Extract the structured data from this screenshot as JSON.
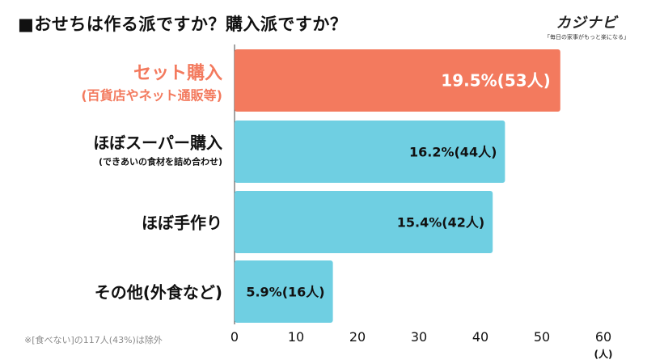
{
  "title": "■おせちは作る派ですか？購入派ですか？",
  "logo": {
    "name": "カジナビ",
    "tagline": "「毎日の家事がもっと楽になる」"
  },
  "note": "※[食べない]の117人(43%)は除外",
  "colors": {
    "highlight": "#f37a5e",
    "bar": "#6fcfe2",
    "axis": "#444444"
  },
  "chart_data": {
    "type": "bar",
    "orientation": "horizontal",
    "title": "おせちは作る派ですか？購入派ですか？",
    "xlabel": "(人)",
    "xlim": [
      0,
      60
    ],
    "xticks": [
      0,
      10,
      20,
      30,
      40,
      50,
      60
    ],
    "categories": [
      {
        "label": "セット購入",
        "sublabel": "(百貨店やネット通販等)",
        "value": 53,
        "data_label": "19.5%(53人)",
        "highlight": true
      },
      {
        "label": "ほぼスーパー購入",
        "sublabel": "(できあいの食材を詰め合わせ)",
        "value": 44,
        "data_label": "16.2%(44人)",
        "highlight": false
      },
      {
        "label": "ほぼ手作り",
        "sublabel": "",
        "value": 42,
        "data_label": "15.4%(42人)",
        "highlight": false
      },
      {
        "label": "その他(外食など)",
        "sublabel": "",
        "value": 16,
        "data_label": "5.9%(16人)",
        "highlight": false
      }
    ]
  }
}
